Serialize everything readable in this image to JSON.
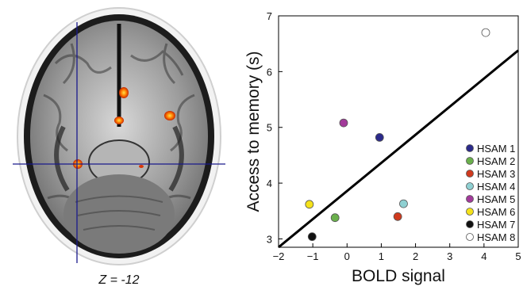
{
  "brain": {
    "slice_label": "Z = -12",
    "crosshair_color": "#1a1a8c",
    "activation_color": "#ff7a00"
  },
  "chart_data": {
    "type": "scatter",
    "xlabel": "BOLD signal",
    "ylabel": "Access to memory (s)",
    "xlim": [
      -2,
      5
    ],
    "ylim": [
      2.85,
      7
    ],
    "x_ticks": [
      "−2",
      "−1",
      "0",
      "1",
      "2",
      "3",
      "4",
      "5"
    ],
    "x_tick_values": [
      -2,
      -1,
      0,
      1,
      2,
      3,
      4,
      5
    ],
    "y_ticks": [
      "3",
      "4",
      "5",
      "6",
      "7"
    ],
    "y_tick_values": [
      3,
      4,
      5,
      6,
      7
    ],
    "legend_placement": "right",
    "fit_line": {
      "x": [
        -2,
        5
      ],
      "y": [
        2.85,
        6.38
      ],
      "color": "#000000"
    },
    "series": [
      {
        "name": "HSAM 1",
        "x": 0.95,
        "y": 4.82,
        "color": "#2b2a8a"
      },
      {
        "name": "HSAM 2",
        "x": -0.35,
        "y": 3.38,
        "color": "#6ab04c"
      },
      {
        "name": "HSAM 3",
        "x": 1.48,
        "y": 3.4,
        "color": "#d03a1e"
      },
      {
        "name": "HSAM 4",
        "x": 1.65,
        "y": 3.63,
        "color": "#8fd0d2"
      },
      {
        "name": "HSAM 5",
        "x": -0.1,
        "y": 5.08,
        "color": "#a23a9a"
      },
      {
        "name": "HSAM 6",
        "x": -1.1,
        "y": 3.62,
        "color": "#f5e21a"
      },
      {
        "name": "HSAM 7",
        "x": -1.02,
        "y": 3.04,
        "color": "#111111"
      },
      {
        "name": "HSAM 8",
        "x": 4.05,
        "y": 6.7,
        "color": "#ffffff"
      }
    ]
  }
}
